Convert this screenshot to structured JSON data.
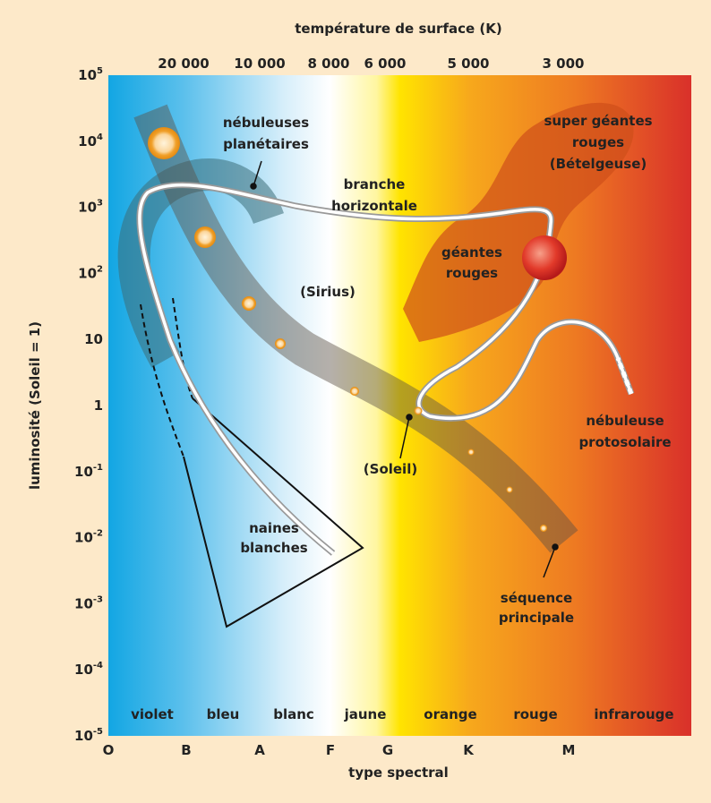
{
  "header": {
    "top_axis_title": "température de surface (K)",
    "left_axis_title": "luminosité (Soleil = 1)",
    "bottom_axis_title": "type spectral"
  },
  "top_axis": {
    "ticks": [
      "20 000",
      "10 000",
      "8 000",
      "6 000",
      "5 000",
      "3 000"
    ]
  },
  "left_axis": {
    "ticks": [
      {
        "base": "10",
        "exp": "5"
      },
      {
        "base": "10",
        "exp": "4"
      },
      {
        "base": "10",
        "exp": "3"
      },
      {
        "base": "10",
        "exp": "2"
      },
      {
        "base": "10"
      },
      {
        "base": "1"
      },
      {
        "base": "10",
        "exp": "-1"
      },
      {
        "base": "10",
        "exp": "-2"
      },
      {
        "base": "10",
        "exp": "-3"
      },
      {
        "base": "10",
        "exp": "-4"
      },
      {
        "base": "10",
        "exp": "-5"
      }
    ]
  },
  "bottom_axis": {
    "ticks": [
      "O",
      "B",
      "A",
      "F",
      "G",
      "K",
      "M"
    ]
  },
  "color_bands": [
    "violet",
    "bleu",
    "blanc",
    "jaune",
    "orange",
    "rouge",
    "infrarouge"
  ],
  "labels": {
    "planetary_nebulae": [
      "nébuleuses",
      "planétaires"
    ],
    "supergiants": [
      "super géantes",
      "rouges",
      "(Bételgeuse)"
    ],
    "horizontal_branch": [
      "branche",
      "horizontale"
    ],
    "red_giants": [
      "géantes",
      "rouges"
    ],
    "sirius": "(Sirius)",
    "protosolar_nebula": [
      "nébuleuse",
      "protosolaire"
    ],
    "sun": "(Soleil)",
    "white_dwarfs": [
      "naines",
      "blanches"
    ],
    "main_sequence": [
      "séquence",
      "principale"
    ]
  }
}
